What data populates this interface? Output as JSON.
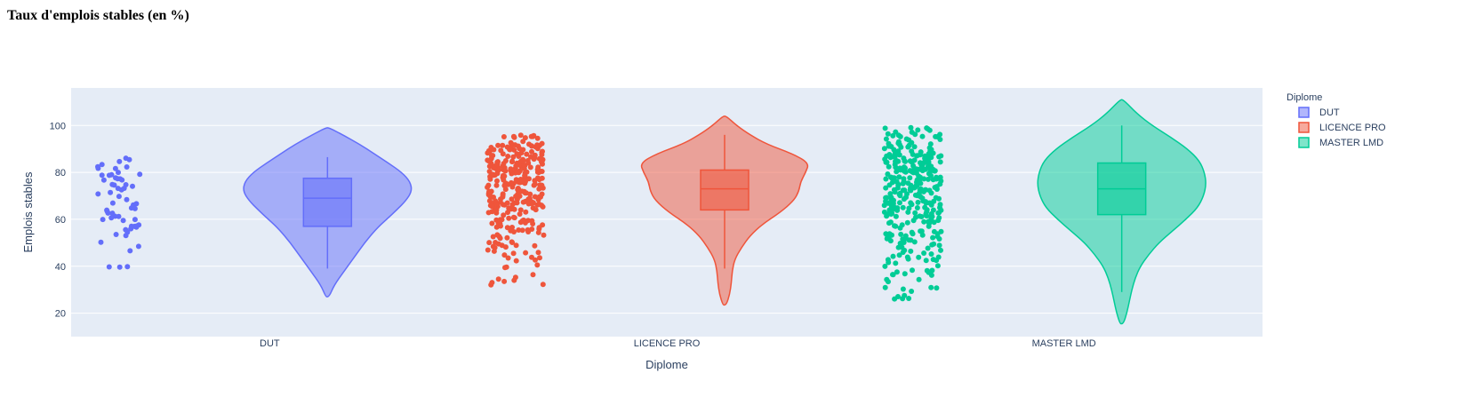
{
  "page": {
    "title": "Taux d'emplois stables (en %)"
  },
  "chart_data": {
    "type": "violin",
    "xlabel": "Diplome",
    "ylabel": "Emplois stables",
    "ylim": [
      10,
      116
    ],
    "yticks": [
      20,
      40,
      60,
      80,
      100
    ],
    "categories": [
      "DUT",
      "LICENCE PRO",
      "MASTER LMD"
    ],
    "legend": {
      "title": "Diplome",
      "placement": "top-right"
    },
    "grid": true,
    "colors": {
      "plot_bg": "#e5ecf6",
      "grid": "#ffffff",
      "text": "#2a3f5f"
    },
    "series": [
      {
        "name": "DUT",
        "color": "#636efa",
        "violin_range": [
          27,
          99
        ],
        "box": {
          "q1": 57,
          "median": 69,
          "q3": 77.5,
          "whisker_low": 39,
          "whisker_high": 86.5
        },
        "density": [
          [
            27,
            0.02
          ],
          [
            32,
            0.08
          ],
          [
            38,
            0.2
          ],
          [
            44,
            0.32
          ],
          [
            50,
            0.44
          ],
          [
            56,
            0.58
          ],
          [
            60,
            0.7
          ],
          [
            64,
            0.82
          ],
          [
            68,
            0.93
          ],
          [
            72,
            1.0
          ],
          [
            76,
            0.98
          ],
          [
            80,
            0.88
          ],
          [
            84,
            0.72
          ],
          [
            88,
            0.55
          ],
          [
            92,
            0.38
          ],
          [
            96,
            0.18
          ],
          [
            99,
            0.02
          ]
        ],
        "points": {
          "count": 60,
          "min": 39,
          "max": 87,
          "dist": [
            [
              39,
              0.4
            ],
            [
              44,
              0.9
            ],
            [
              48,
              1.2
            ],
            [
              53,
              1.6
            ],
            [
              57,
              1.8
            ],
            [
              62,
              2.0
            ],
            [
              66,
              2.2
            ],
            [
              70,
              2.1
            ],
            [
              74,
              2.2
            ],
            [
              78,
              2.0
            ],
            [
              82,
              1.7
            ],
            [
              86,
              1.0
            ]
          ]
        }
      },
      {
        "name": "LICENCE PRO",
        "color": "#ef553b",
        "violin_range": [
          23.5,
          104
        ],
        "box": {
          "q1": 64,
          "median": 73,
          "q3": 81,
          "whisker_low": 39,
          "whisker_high": 96
        },
        "density": [
          [
            23.5,
            0.02
          ],
          [
            28,
            0.06
          ],
          [
            33,
            0.08
          ],
          [
            38,
            0.09
          ],
          [
            43,
            0.12
          ],
          [
            48,
            0.2
          ],
          [
            53,
            0.3
          ],
          [
            58,
            0.45
          ],
          [
            63,
            0.66
          ],
          [
            68,
            0.82
          ],
          [
            72,
            0.88
          ],
          [
            76,
            0.9
          ],
          [
            80,
            0.96
          ],
          [
            84,
            1.0
          ],
          [
            88,
            0.8
          ],
          [
            92,
            0.5
          ],
          [
            96,
            0.3
          ],
          [
            100,
            0.14
          ],
          [
            104,
            0.02
          ]
        ],
        "points": {
          "count": 320,
          "min": 32,
          "max": 96,
          "dist": [
            [
              32,
              0.2
            ],
            [
              36,
              0.3
            ],
            [
              40,
              0.4
            ],
            [
              45,
              0.7
            ],
            [
              50,
              1.0
            ],
            [
              55,
              1.4
            ],
            [
              60,
              2.0
            ],
            [
              65,
              2.8
            ],
            [
              70,
              3.2
            ],
            [
              75,
              3.4
            ],
            [
              80,
              3.5
            ],
            [
              85,
              3.2
            ],
            [
              90,
              2.2
            ],
            [
              95,
              0.8
            ]
          ]
        }
      },
      {
        "name": "MASTER LMD",
        "color": "#00cc96",
        "violin_range": [
          15.5,
          111
        ],
        "box": {
          "q1": 62,
          "median": 73,
          "q3": 84,
          "whisker_low": 29,
          "whisker_high": 100
        },
        "density": [
          [
            15.5,
            0.02
          ],
          [
            20,
            0.06
          ],
          [
            25,
            0.09
          ],
          [
            30,
            0.12
          ],
          [
            35,
            0.16
          ],
          [
            40,
            0.22
          ],
          [
            45,
            0.32
          ],
          [
            50,
            0.44
          ],
          [
            55,
            0.6
          ],
          [
            60,
            0.76
          ],
          [
            65,
            0.9
          ],
          [
            70,
            0.97
          ],
          [
            75,
            1.0
          ],
          [
            80,
            0.98
          ],
          [
            85,
            0.92
          ],
          [
            90,
            0.78
          ],
          [
            95,
            0.58
          ],
          [
            100,
            0.36
          ],
          [
            105,
            0.18
          ],
          [
            111,
            0.02
          ]
        ],
        "points": {
          "count": 340,
          "min": 26,
          "max": 100,
          "dist": [
            [
              26,
              0.3
            ],
            [
              30,
              0.4
            ],
            [
              35,
              0.6
            ],
            [
              40,
              0.8
            ],
            [
              45,
              1.1
            ],
            [
              50,
              1.4
            ],
            [
              55,
              1.8
            ],
            [
              60,
              2.4
            ],
            [
              65,
              2.8
            ],
            [
              70,
              3.0
            ],
            [
              75,
              3.0
            ],
            [
              80,
              2.8
            ],
            [
              85,
              2.5
            ],
            [
              90,
              2.2
            ],
            [
              95,
              1.6
            ],
            [
              100,
              0.6
            ]
          ]
        }
      }
    ]
  }
}
